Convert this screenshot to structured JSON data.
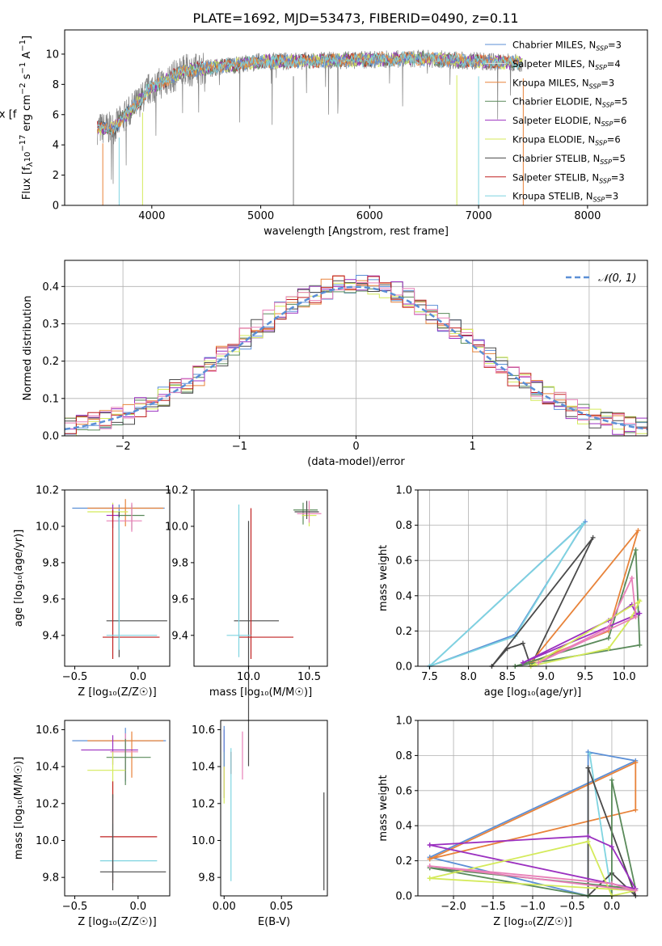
{
  "figure_title": "PLATE=1692, MJD=53473, FIBERID=0490, z=0.11",
  "colors": {
    "chabrier_miles": "#5b8fd6",
    "salpeter_miles": "#e0e0e0",
    "kroupa_miles": "#e8833a",
    "chabrier_elodie": "#5a8a5a",
    "salpeter_elodie": "#9b30c0",
    "kroupa_elodie": "#d4ea5a",
    "chabrier_stelib": "#4a4a4a",
    "salpeter_stelib": "#c02020",
    "kroupa_stelib": "#7fd4e0",
    "pink": "#e880b8",
    "normal_curve": "#5b8fd6"
  },
  "chart_data": [
    {
      "id": "spectrum",
      "type": "line",
      "xlabel": "wavelength [Angstrom, rest frame]",
      "ylabel": "Flux [f",
      "ylabel_sub": "λ",
      "ylabel_rest": "10",
      "ylabel_exp": "−17",
      "ylabel_tail": " erg cm",
      "ylabel_exp2": "−2",
      "ylabel_tail2": " s",
      "ylabel_exp3": "−1",
      "ylabel_tail3": " A",
      "ylabel_exp4": "−1",
      "ylabel_end": "]",
      "xlim": [
        3200,
        8550
      ],
      "ylim": [
        0,
        11.6
      ],
      "xticks": [
        4000,
        5000,
        6000,
        7000,
        8000
      ],
      "yticks": [
        0,
        2,
        4,
        6,
        8,
        10
      ],
      "spectrum_range": [
        3500,
        7400
      ],
      "drop_lines": [
        3550,
        3700,
        3915,
        5300,
        6800,
        7000,
        7410
      ],
      "legend": [
        {
          "label": "Chabrier MILES, N",
          "sub": "SSP",
          "tail": "=3",
          "color_key": "chabrier_miles"
        },
        {
          "label": "Salpeter MILES, N",
          "sub": "SSP",
          "tail": "=4",
          "color_key": "salpeter_miles"
        },
        {
          "label": "Kroupa MILES, N",
          "sub": "SSP",
          "tail": "=3",
          "color_key": "kroupa_miles"
        },
        {
          "label": "Chabrier ELODIE, N",
          "sub": "SSP",
          "tail": "=5",
          "color_key": "chabrier_elodie"
        },
        {
          "label": "Salpeter ELODIE, N",
          "sub": "SSP",
          "tail": "=6",
          "color_key": "salpeter_elodie"
        },
        {
          "label": "Kroupa ELODIE, N",
          "sub": "SSP",
          "tail": "=6",
          "color_key": "kroupa_elodie"
        },
        {
          "label": "Chabrier STELIB, N",
          "sub": "SSP",
          "tail": "=5",
          "color_key": "chabrier_stelib"
        },
        {
          "label": "Salpeter STELIB, N",
          "sub": "SSP",
          "tail": "=3",
          "color_key": "salpeter_stelib"
        },
        {
          "label": "Kroupa STELIB, N",
          "sub": "SSP",
          "tail": "=3",
          "color_key": "kroupa_stelib"
        }
      ]
    },
    {
      "id": "residuals",
      "type": "area",
      "xlabel": "(data-model)/error",
      "ylabel": "Normed distribution",
      "xlim": [
        -2.5,
        2.5
      ],
      "ylim": [
        0,
        0.47
      ],
      "xticks": [
        -2,
        -1,
        0,
        1,
        2
      ],
      "yticks": [
        0.0,
        0.1,
        0.2,
        0.3,
        0.4
      ],
      "bin_width": 0.1,
      "legend_label": "𝒩(0, 1)",
      "grid": true
    },
    {
      "id": "age_vs_Z",
      "type": "scatter",
      "xlabel": "Z [log₁₀(Z/Z☉)]",
      "ylabel": "age  [log₁₀(age/yr)]",
      "xlim": [
        -0.58,
        0.25
      ],
      "ylim": [
        9.23,
        10.2
      ],
      "xticks": [
        -0.5,
        0.0
      ],
      "yticks": [
        9.4,
        9.6,
        9.8,
        10.0,
        10.2
      ],
      "points": [
        {
          "x": -0.15,
          "y": 10.1,
          "xerr": [
            0.37,
            0.36
          ],
          "yerr": [
            0.12,
            0.02
          ],
          "color_key": "chabrier_miles"
        },
        {
          "x": -0.1,
          "y": 10.1,
          "xerr": [
            0.3,
            0.3
          ],
          "yerr": [
            0.1,
            0.05
          ],
          "color_key": "kroupa_miles"
        },
        {
          "x": -0.2,
          "y": 10.08,
          "xerr": [
            0.2,
            0.12
          ],
          "yerr": [
            0.06,
            0.05
          ],
          "color_key": "kroupa_elodie"
        },
        {
          "x": -0.05,
          "y": 10.06,
          "xerr": [
            0.12,
            0.1
          ],
          "yerr": [
            0.08,
            0.06
          ],
          "color_key": "chabrier_elodie"
        },
        {
          "x": -0.2,
          "y": 10.06,
          "xerr": [
            0.05,
            0.05
          ],
          "yerr": [
            0.07,
            0.06
          ],
          "color_key": "salpeter_elodie"
        },
        {
          "x": -0.05,
          "y": 10.03,
          "xerr": [
            0.2,
            0.08
          ],
          "yerr": [
            0.06,
            0.1
          ],
          "color_key": "pink"
        },
        {
          "x": -0.15,
          "y": 9.48,
          "xerr": [
            0.1,
            0.38
          ],
          "yerr": [
            0.2,
            0.6
          ],
          "color_key": "chabrier_stelib"
        },
        {
          "x": -0.2,
          "y": 9.39,
          "xerr": [
            0.08,
            0.37
          ],
          "yerr": [
            0.12,
            0.7
          ],
          "color_key": "salpeter_stelib"
        },
        {
          "x": -0.15,
          "y": 9.4,
          "xerr": [
            0.1,
            0.3
          ],
          "yerr": [
            0.08,
            0.65
          ],
          "color_key": "kroupa_stelib"
        }
      ]
    },
    {
      "id": "age_vs_mass",
      "type": "scatter",
      "xlabel": "mass [log₁₀(M/M☉)]",
      "ylabel": "",
      "xlim": [
        9.55,
        10.65
      ],
      "ylim": [
        9.23,
        10.2
      ],
      "xticks": [
        10.0,
        10.5
      ],
      "yticks": [
        9.4,
        9.6,
        9.8,
        10.0,
        10.2
      ],
      "points": [
        {
          "x": 10.45,
          "y": 10.09,
          "xerr": [
            0.08,
            0.12
          ],
          "yerr": [
            0.08,
            0.04
          ],
          "color_key": "chabrier_elodie"
        },
        {
          "x": 10.5,
          "y": 10.06,
          "xerr": [
            0.06,
            0.06
          ],
          "yerr": [
            0.06,
            0.06
          ],
          "color_key": "kroupa_elodie"
        },
        {
          "x": 10.5,
          "y": 10.07,
          "xerr": [
            0.1,
            0.1
          ],
          "yerr": [
            0.05,
            0.07
          ],
          "color_key": "pink"
        },
        {
          "x": 10.48,
          "y": 10.08,
          "xerr": [
            0.1,
            0.1
          ],
          "yerr": [
            0.04,
            0.06
          ],
          "color_key": "chabrier_stelib"
        },
        {
          "x": 10.0,
          "y": 9.48,
          "xerr": [
            0.12,
            0.25
          ],
          "yerr": [
            0.8,
            0.55
          ],
          "color_key": "chabrier_stelib"
        },
        {
          "x": 10.02,
          "y": 9.39,
          "xerr": [
            0.1,
            0.35
          ],
          "yerr": [
            0.12,
            0.71
          ],
          "color_key": "salpeter_stelib"
        },
        {
          "x": 9.92,
          "y": 9.4,
          "xerr": [
            0.1,
            0.1
          ],
          "yerr": [
            0.12,
            0.72
          ],
          "color_key": "kroupa_stelib"
        }
      ]
    },
    {
      "id": "weight_vs_age",
      "type": "line",
      "xlabel": "age  [log₁₀(age/yr)]",
      "ylabel": "mass weight",
      "xlim": [
        7.35,
        10.3
      ],
      "ylim": [
        0,
        1.0
      ],
      "xticks": [
        7.5,
        8.0,
        8.5,
        9.0,
        9.5,
        10.0
      ],
      "yticks": [
        0.0,
        0.2,
        0.4,
        0.6,
        0.8,
        1.0
      ],
      "grid": true,
      "series": [
        {
          "color_key": "chabrier_miles",
          "x": [
            7.5,
            8.6,
            9.5,
            7.5
          ],
          "y": [
            0.0,
            0.18,
            0.82,
            0.0
          ]
        },
        {
          "color_key": "kroupa_stelib",
          "x": [
            7.5,
            8.6,
            9.48,
            7.5
          ],
          "y": [
            0.0,
            0.17,
            0.81,
            0.0
          ]
        },
        {
          "color_key": "chabrier_stelib",
          "x": [
            8.3,
            8.5,
            8.7,
            8.8,
            9.6,
            8.3
          ],
          "y": [
            0.0,
            0.1,
            0.13,
            0.0,
            0.73,
            0.0
          ]
        },
        {
          "color_key": "kroupa_miles",
          "x": [
            8.8,
            9.8,
            10.18,
            8.8
          ],
          "y": [
            0.02,
            0.2,
            0.77,
            0.02
          ]
        },
        {
          "color_key": "chabrier_elodie",
          "x": [
            8.6,
            9.8,
            10.15,
            10.2,
            8.6
          ],
          "y": [
            0.0,
            0.16,
            0.66,
            0.12,
            0.0
          ]
        },
        {
          "color_key": "salpeter_elodie",
          "x": [
            8.7,
            9.8,
            10.1,
            10.15,
            10.2,
            8.7
          ],
          "y": [
            0.02,
            0.26,
            0.35,
            0.3,
            0.3,
            0.02
          ]
        },
        {
          "color_key": "kroupa_elodie",
          "x": [
            8.8,
            9.8,
            10.1,
            10.2,
            8.8
          ],
          "y": [
            0.0,
            0.1,
            0.28,
            0.37,
            0.0
          ]
        },
        {
          "color_key": "pink",
          "x": [
            8.9,
            9.8,
            10.1,
            10.15,
            8.9
          ],
          "y": [
            0.02,
            0.22,
            0.5,
            0.28,
            0.02
          ]
        }
      ]
    },
    {
      "id": "mass_vs_Z",
      "type": "scatter",
      "xlabel": "Z [log₁₀(Z/Z☉)]",
      "ylabel": "mass [log₁₀(M/M☉)]",
      "xlim": [
        -0.58,
        0.25
      ],
      "ylim": [
        9.7,
        10.65
      ],
      "xticks": [
        -0.5,
        0.0
      ],
      "yticks": [
        9.8,
        10.0,
        10.2,
        10.4,
        10.6
      ],
      "points": [
        {
          "x": -0.1,
          "y": 10.54,
          "xerr": [
            0.42,
            0.32
          ],
          "yerr": [
            0.22,
            0.07
          ],
          "color_key": "chabrier_miles"
        },
        {
          "x": -0.05,
          "y": 10.54,
          "xerr": [
            0.35,
            0.25
          ],
          "yerr": [
            0.2,
            0.05
          ],
          "color_key": "kroupa_miles"
        },
        {
          "x": -0.2,
          "y": 10.49,
          "xerr": [
            0.25,
            0.2
          ],
          "yerr": [
            0.08,
            0.08
          ],
          "color_key": "salpeter_elodie"
        },
        {
          "x": -0.1,
          "y": 10.48,
          "xerr": [
            0.12,
            0.1
          ],
          "yerr": [
            0.15,
            0.1
          ],
          "color_key": "pink"
        },
        {
          "x": -0.1,
          "y": 10.45,
          "xerr": [
            0.15,
            0.2
          ],
          "yerr": [
            0.15,
            0.1
          ],
          "color_key": "chabrier_elodie"
        },
        {
          "x": -0.2,
          "y": 10.38,
          "xerr": [
            0.2,
            0.1
          ],
          "yerr": [
            0.15,
            0.1
          ],
          "color_key": "kroupa_elodie"
        },
        {
          "x": -0.2,
          "y": 10.02,
          "xerr": [
            0.1,
            0.35
          ],
          "yerr": [
            0.25,
            0.3
          ],
          "color_key": "salpeter_stelib"
        },
        {
          "x": -0.2,
          "y": 9.89,
          "xerr": [
            0.1,
            0.35
          ],
          "yerr": [
            0.1,
            0.2
          ],
          "color_key": "kroupa_stelib"
        },
        {
          "x": -0.2,
          "y": 9.83,
          "xerr": [
            0.1,
            0.42
          ],
          "yerr": [
            0.1,
            0.42
          ],
          "color_key": "chabrier_stelib"
        }
      ]
    },
    {
      "id": "mass_vs_ebv",
      "type": "scatter",
      "xlabel": "E(B-V)",
      "ylabel": "",
      "xlim": [
        -0.003,
        0.09
      ],
      "ylim": [
        9.7,
        10.65
      ],
      "xticks": [
        0.0,
        0.05
      ],
      "yticks": [
        9.8,
        10.0,
        10.2,
        10.4,
        10.6
      ],
      "points": [
        {
          "x": 0.0,
          "y": 10.5,
          "xerr": [
            0.0,
            0.0
          ],
          "yerr": [
            0.27,
            0.1
          ],
          "color_key": "salpeter_elodie"
        },
        {
          "x": 0.0,
          "y": 10.38,
          "xerr": [
            0.0,
            0.0
          ],
          "yerr": [
            0.18,
            0.1
          ],
          "color_key": "kroupa_elodie"
        },
        {
          "x": 0.0,
          "y": 10.55,
          "xerr": [
            0.0,
            0.0
          ],
          "yerr": [
            0.15,
            0.07
          ],
          "color_key": "chabrier_miles"
        },
        {
          "x": 0.016,
          "y": 10.46,
          "xerr": [
            0.0,
            0.0
          ],
          "yerr": [
            0.13,
            0.13
          ],
          "color_key": "pink"
        },
        {
          "x": 0.006,
          "y": 10.42,
          "xerr": [
            0.0,
            0.0
          ],
          "yerr": [
            0.06,
            0.06
          ],
          "color_key": "salpeter_stelib"
        },
        {
          "x": 0.006,
          "y": 10.1,
          "xerr": [
            0.0,
            0.0
          ],
          "yerr": [
            0.32,
            0.4
          ],
          "color_key": "kroupa_stelib"
        },
        {
          "x": 0.087,
          "y": 10.0,
          "xerr": [
            0.0,
            0.0
          ],
          "yerr": [
            0.27,
            0.26
          ],
          "color_key": "chabrier_stelib"
        }
      ]
    },
    {
      "id": "weight_vs_Z",
      "type": "line",
      "xlabel": "Z [log₁₀(Z/Z☉)]",
      "ylabel": "mass weight",
      "xlim": [
        -2.45,
        0.45
      ],
      "ylim": [
        0,
        1.0
      ],
      "xticks": [
        -2.0,
        -1.5,
        -1.0,
        -0.5,
        0.0
      ],
      "yticks": [
        0.0,
        0.2,
        0.4,
        0.6,
        0.8,
        1.0
      ],
      "grid": true,
      "series": [
        {
          "color_key": "chabrier_miles",
          "x": [
            -2.3,
            0.3,
            -0.3,
            -0.3,
            -2.3
          ],
          "y": [
            0.22,
            0.77,
            0.82,
            0.0,
            0.22
          ]
        },
        {
          "color_key": "kroupa_miles",
          "x": [
            -2.3,
            0.3,
            0.3,
            -2.3
          ],
          "y": [
            0.21,
            0.76,
            0.49,
            0.21
          ]
        },
        {
          "color_key": "kroupa_stelib",
          "x": [
            -0.28,
            0.0,
            -0.28
          ],
          "y": [
            0.81,
            0.0,
            0.81
          ]
        },
        {
          "color_key": "chabrier_stelib",
          "x": [
            -0.3,
            -0.3,
            0.0,
            0.3,
            -0.3
          ],
          "y": [
            0.73,
            0.0,
            0.13,
            0.0,
            0.73
          ]
        },
        {
          "color_key": "chabrier_elodie",
          "x": [
            -2.3,
            -0.3,
            0.0,
            0.0,
            0.3,
            -2.3
          ],
          "y": [
            0.16,
            0.0,
            0.0,
            0.66,
            0.04,
            0.16
          ]
        },
        {
          "color_key": "salpeter_elodie",
          "x": [
            -2.3,
            -0.3,
            0.0,
            0.3,
            -2.3
          ],
          "y": [
            0.29,
            0.34,
            0.28,
            0.04,
            0.29
          ]
        },
        {
          "color_key": "kroupa_elodie",
          "x": [
            -2.3,
            -0.3,
            0.0,
            0.3,
            -2.3
          ],
          "y": [
            0.1,
            0.31,
            0.0,
            0.03,
            0.1
          ]
        },
        {
          "color_key": "pink",
          "x": [
            -2.3,
            0.0,
            0.3,
            -2.3
          ],
          "y": [
            0.17,
            0.07,
            0.03,
            0.17
          ]
        }
      ]
    }
  ]
}
